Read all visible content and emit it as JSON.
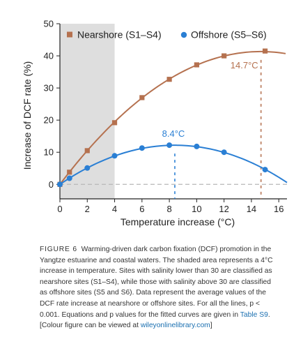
{
  "chart_data": {
    "type": "line",
    "xlabel": "Temperature increase (°C)",
    "ylabel": "Increase of DCF rate (%)",
    "xlim": [
      0,
      16.6
    ],
    "ylim": [
      -4.5,
      50
    ],
    "xticks": [
      0,
      2,
      4,
      6,
      8,
      10,
      12,
      14,
      16
    ],
    "yticks": [
      0,
      10,
      20,
      30,
      40,
      50
    ],
    "shaded_region": {
      "x": [
        0,
        4
      ]
    },
    "legend_position": "top",
    "series": [
      {
        "name": "Nearshore (S1–S4)",
        "marker": "square",
        "color": "#b5714f",
        "points": [
          {
            "x": 0,
            "y": 0
          },
          {
            "x": 0.7,
            "y": 3.8
          },
          {
            "x": 2,
            "y": 10.5
          },
          {
            "x": 4,
            "y": 19.2
          },
          {
            "x": 6,
            "y": 27
          },
          {
            "x": 8,
            "y": 32.7
          },
          {
            "x": 10,
            "y": 37.2
          },
          {
            "x": 12,
            "y": 40
          },
          {
            "x": 15,
            "y": 41.5
          }
        ],
        "fit": {
          "a": 0,
          "b": 5.63,
          "c": -0.1917,
          "x_end": 16.5
        },
        "peak": {
          "x": 14.7,
          "label": "14.7°C"
        }
      },
      {
        "name": "Offshore (S5–S6)",
        "marker": "circle",
        "color": "#2a7fd4",
        "points": [
          {
            "x": 0,
            "y": 0
          },
          {
            "x": 0.7,
            "y": 1.9
          },
          {
            "x": 2,
            "y": 5.1
          },
          {
            "x": 4,
            "y": 8.9
          },
          {
            "x": 6,
            "y": 11.3
          },
          {
            "x": 8,
            "y": 12.2
          },
          {
            "x": 10,
            "y": 11.8
          },
          {
            "x": 12,
            "y": 10
          },
          {
            "x": 15,
            "y": 4.6
          }
        ],
        "fit": {
          "a": 0,
          "b": 2.9,
          "c": -0.1726,
          "x_end": 16.6
        },
        "peak": {
          "x": 8.4,
          "label": "8.4°C"
        }
      }
    ]
  },
  "caption": {
    "fig_label": "FIGURE 6",
    "text": "Warming-driven dark carbon fixation (DCF) promotion in the Yangtze estuarine and coastal waters. The shaded area represents a 4°C increase in temperature. Sites with salinity lower than 30 are classified as nearshore sites (S1–S4), while those with salinity above 30 are classified as offshore sites (S5 and S6). Data represent the average values of the DCF rate increase at nearshore or offshore sites. For all the lines, p < 0.001. Equations and p values for the fitted curves are given in ",
    "table_link": "Table S9",
    "text_mid": ". [Colour figure can be viewed at ",
    "site_link": "wileyonlinelibrary.com",
    "text_end": "]"
  },
  "colors": {
    "shade": "#dedede",
    "zero_line": "#b8b8b8",
    "axis": "#222222"
  }
}
